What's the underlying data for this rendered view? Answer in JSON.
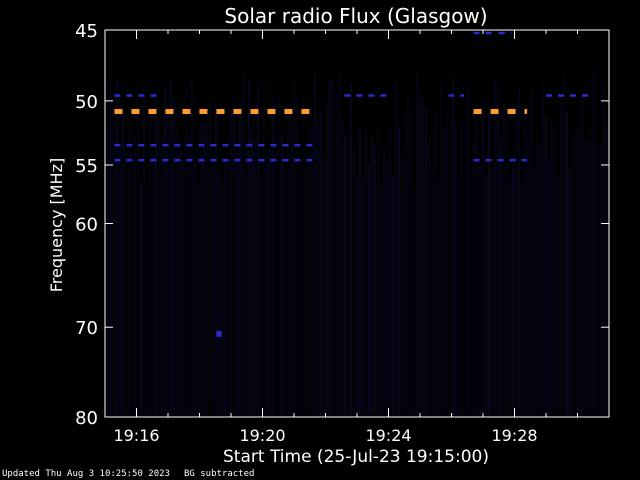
{
  "chart_data": {
    "type": "heatmap",
    "title": "Solar radio Flux (Glasgow)",
    "xlabel": "Start Time (25-Jul-23 19:15:00)",
    "ylabel": "Frequency [MHz]",
    "x_range_minutes": [
      0,
      16
    ],
    "x_ticks": [
      {
        "label": "19:16",
        "minute": 1
      },
      {
        "label": "19:20",
        "minute": 5
      },
      {
        "label": "19:24",
        "minute": 9
      },
      {
        "label": "19:28",
        "minute": 13
      }
    ],
    "y_scale": "log",
    "y_range": [
      80,
      45
    ],
    "y_ticks": [
      45,
      50,
      55,
      60,
      70,
      80
    ],
    "grid": false,
    "colors": {
      "background": "#000000",
      "axis": "#ffffff",
      "strong_emission": "#ff9a2e",
      "weak_emission": "#2a2acf",
      "faint_noise": "#10104a"
    },
    "bands": [
      {
        "freq_mhz": 50.8,
        "start_min": 0.3,
        "end_min": 6.6,
        "level": "strong"
      },
      {
        "freq_mhz": 50.8,
        "start_min": 11.7,
        "end_min": 13.4,
        "level": "strong"
      },
      {
        "freq_mhz": 53.4,
        "start_min": 0.3,
        "end_min": 6.6,
        "level": "weak"
      },
      {
        "freq_mhz": 54.6,
        "start_min": 0.3,
        "end_min": 6.6,
        "level": "weak"
      },
      {
        "freq_mhz": 54.6,
        "start_min": 11.7,
        "end_min": 13.4,
        "level": "weak"
      },
      {
        "freq_mhz": 49.6,
        "start_min": 0.3,
        "end_min": 1.8,
        "level": "weak"
      },
      {
        "freq_mhz": 49.6,
        "start_min": 7.6,
        "end_min": 9.0,
        "level": "weak"
      },
      {
        "freq_mhz": 49.6,
        "start_min": 10.9,
        "end_min": 11.4,
        "level": "weak"
      },
      {
        "freq_mhz": 49.6,
        "start_min": 14.0,
        "end_min": 15.5,
        "level": "weak"
      },
      {
        "freq_mhz": 45.2,
        "start_min": 11.7,
        "end_min": 12.3,
        "level": "weak"
      },
      {
        "freq_mhz": 45.2,
        "start_min": 12.5,
        "end_min": 12.9,
        "level": "weak"
      }
    ],
    "points": [
      {
        "minute": 3.6,
        "freq_mhz": 70.7,
        "level": "weak"
      }
    ]
  },
  "footer": {
    "updated": "Updated Thu Aug  3 10:25:50 2023",
    "note": "BG subtracted"
  }
}
